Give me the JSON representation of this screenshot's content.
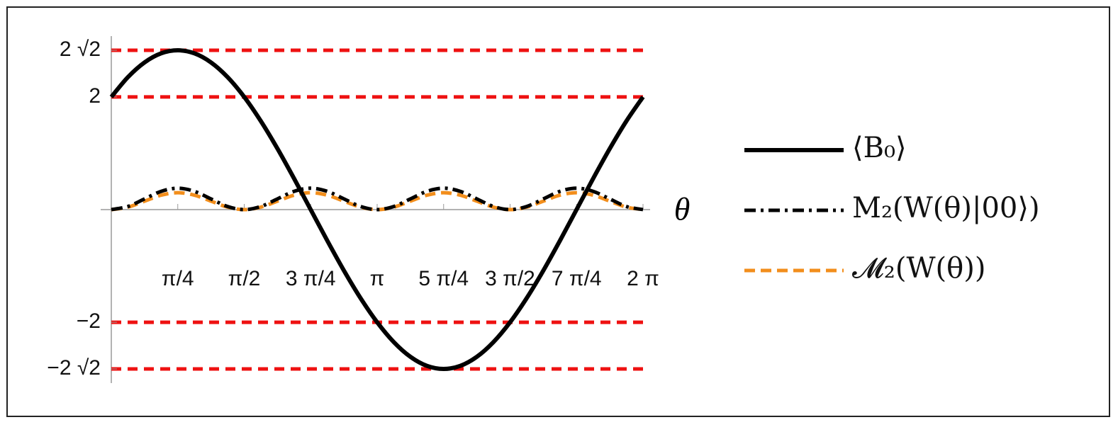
{
  "chart_data": {
    "type": "line",
    "x_label": "θ",
    "x": [
      0,
      0.1963,
      0.3927,
      0.589,
      0.7854,
      0.9817,
      1.1781,
      1.3744,
      1.5708,
      1.7671,
      1.9635,
      2.1598,
      2.3562,
      2.5525,
      2.7489,
      2.9452,
      3.1416,
      3.3379,
      3.5343,
      3.7306,
      3.927,
      4.1233,
      4.3197,
      4.516,
      4.7124,
      4.9087,
      5.1051,
      5.3014,
      5.4978,
      5.6941,
      5.8905,
      6.0868,
      6.2832
    ],
    "series": [
      {
        "name": "⟨B₀⟩",
        "color": "#000000",
        "style": "solid",
        "values": [
          2,
          2.3518,
          2.6131,
          2.7741,
          2.8284,
          2.7741,
          2.6131,
          2.3518,
          2,
          1.5714,
          1.0824,
          0.5518,
          0,
          -0.5518,
          -1.0824,
          -1.5714,
          -2,
          -2.3518,
          -2.6131,
          -2.7741,
          -2.8284,
          -2.7741,
          -2.6131,
          -2.3518,
          -2,
          -1.5714,
          -1.0824,
          -0.5518,
          0,
          0.5518,
          1.0824,
          1.5714,
          2
        ]
      },
      {
        "name": "M₂(W(θ)|00⟩)",
        "color": "#000000",
        "style": "dashdot",
        "values": [
          0,
          0.0556,
          0.19,
          0.3244,
          0.38,
          0.3244,
          0.19,
          0.0556,
          0,
          0.0556,
          0.19,
          0.3244,
          0.38,
          0.3244,
          0.19,
          0.0556,
          0,
          0.0556,
          0.19,
          0.3244,
          0.38,
          0.3244,
          0.19,
          0.0556,
          0,
          0.0556,
          0.19,
          0.3244,
          0.38,
          0.3244,
          0.19,
          0.0556,
          0
        ]
      },
      {
        "name": "𝓜₂(W(θ))",
        "color": "#f28e1c",
        "style": "dashed",
        "values": [
          0,
          0.0439,
          0.15,
          0.2561,
          0.3,
          0.2561,
          0.15,
          0.0439,
          0,
          0.0439,
          0.15,
          0.2561,
          0.3,
          0.2561,
          0.15,
          0.0439,
          0,
          0.0439,
          0.15,
          0.2561,
          0.3,
          0.2561,
          0.15,
          0.0439,
          0,
          0.0439,
          0.15,
          0.2561,
          0.3,
          0.2561,
          0.15,
          0.0439,
          0
        ]
      }
    ],
    "xlim": [
      0,
      6.2832
    ],
    "ylim": [
      -2.8284,
      2.8284
    ],
    "xticks": [
      {
        "value": 0.7854,
        "label": "π/4"
      },
      {
        "value": 1.5708,
        "label": "π/2"
      },
      {
        "value": 2.3562,
        "label": "3 π/4"
      },
      {
        "value": 3.1416,
        "label": "π"
      },
      {
        "value": 3.927,
        "label": "5 π/4"
      },
      {
        "value": 4.7124,
        "label": "3 π/2"
      },
      {
        "value": 5.4978,
        "label": "7 π/4"
      },
      {
        "value": 6.2832,
        "label": "2 π"
      }
    ],
    "yticks": [
      {
        "value": -2.8284,
        "label": "−2 √2"
      },
      {
        "value": -2,
        "label": "−2"
      },
      {
        "value": 2,
        "label": "2"
      },
      {
        "value": 2.8284,
        "label": "2 √2"
      }
    ],
    "grid": true,
    "grid_color": "#ee1111",
    "legend": "right"
  }
}
